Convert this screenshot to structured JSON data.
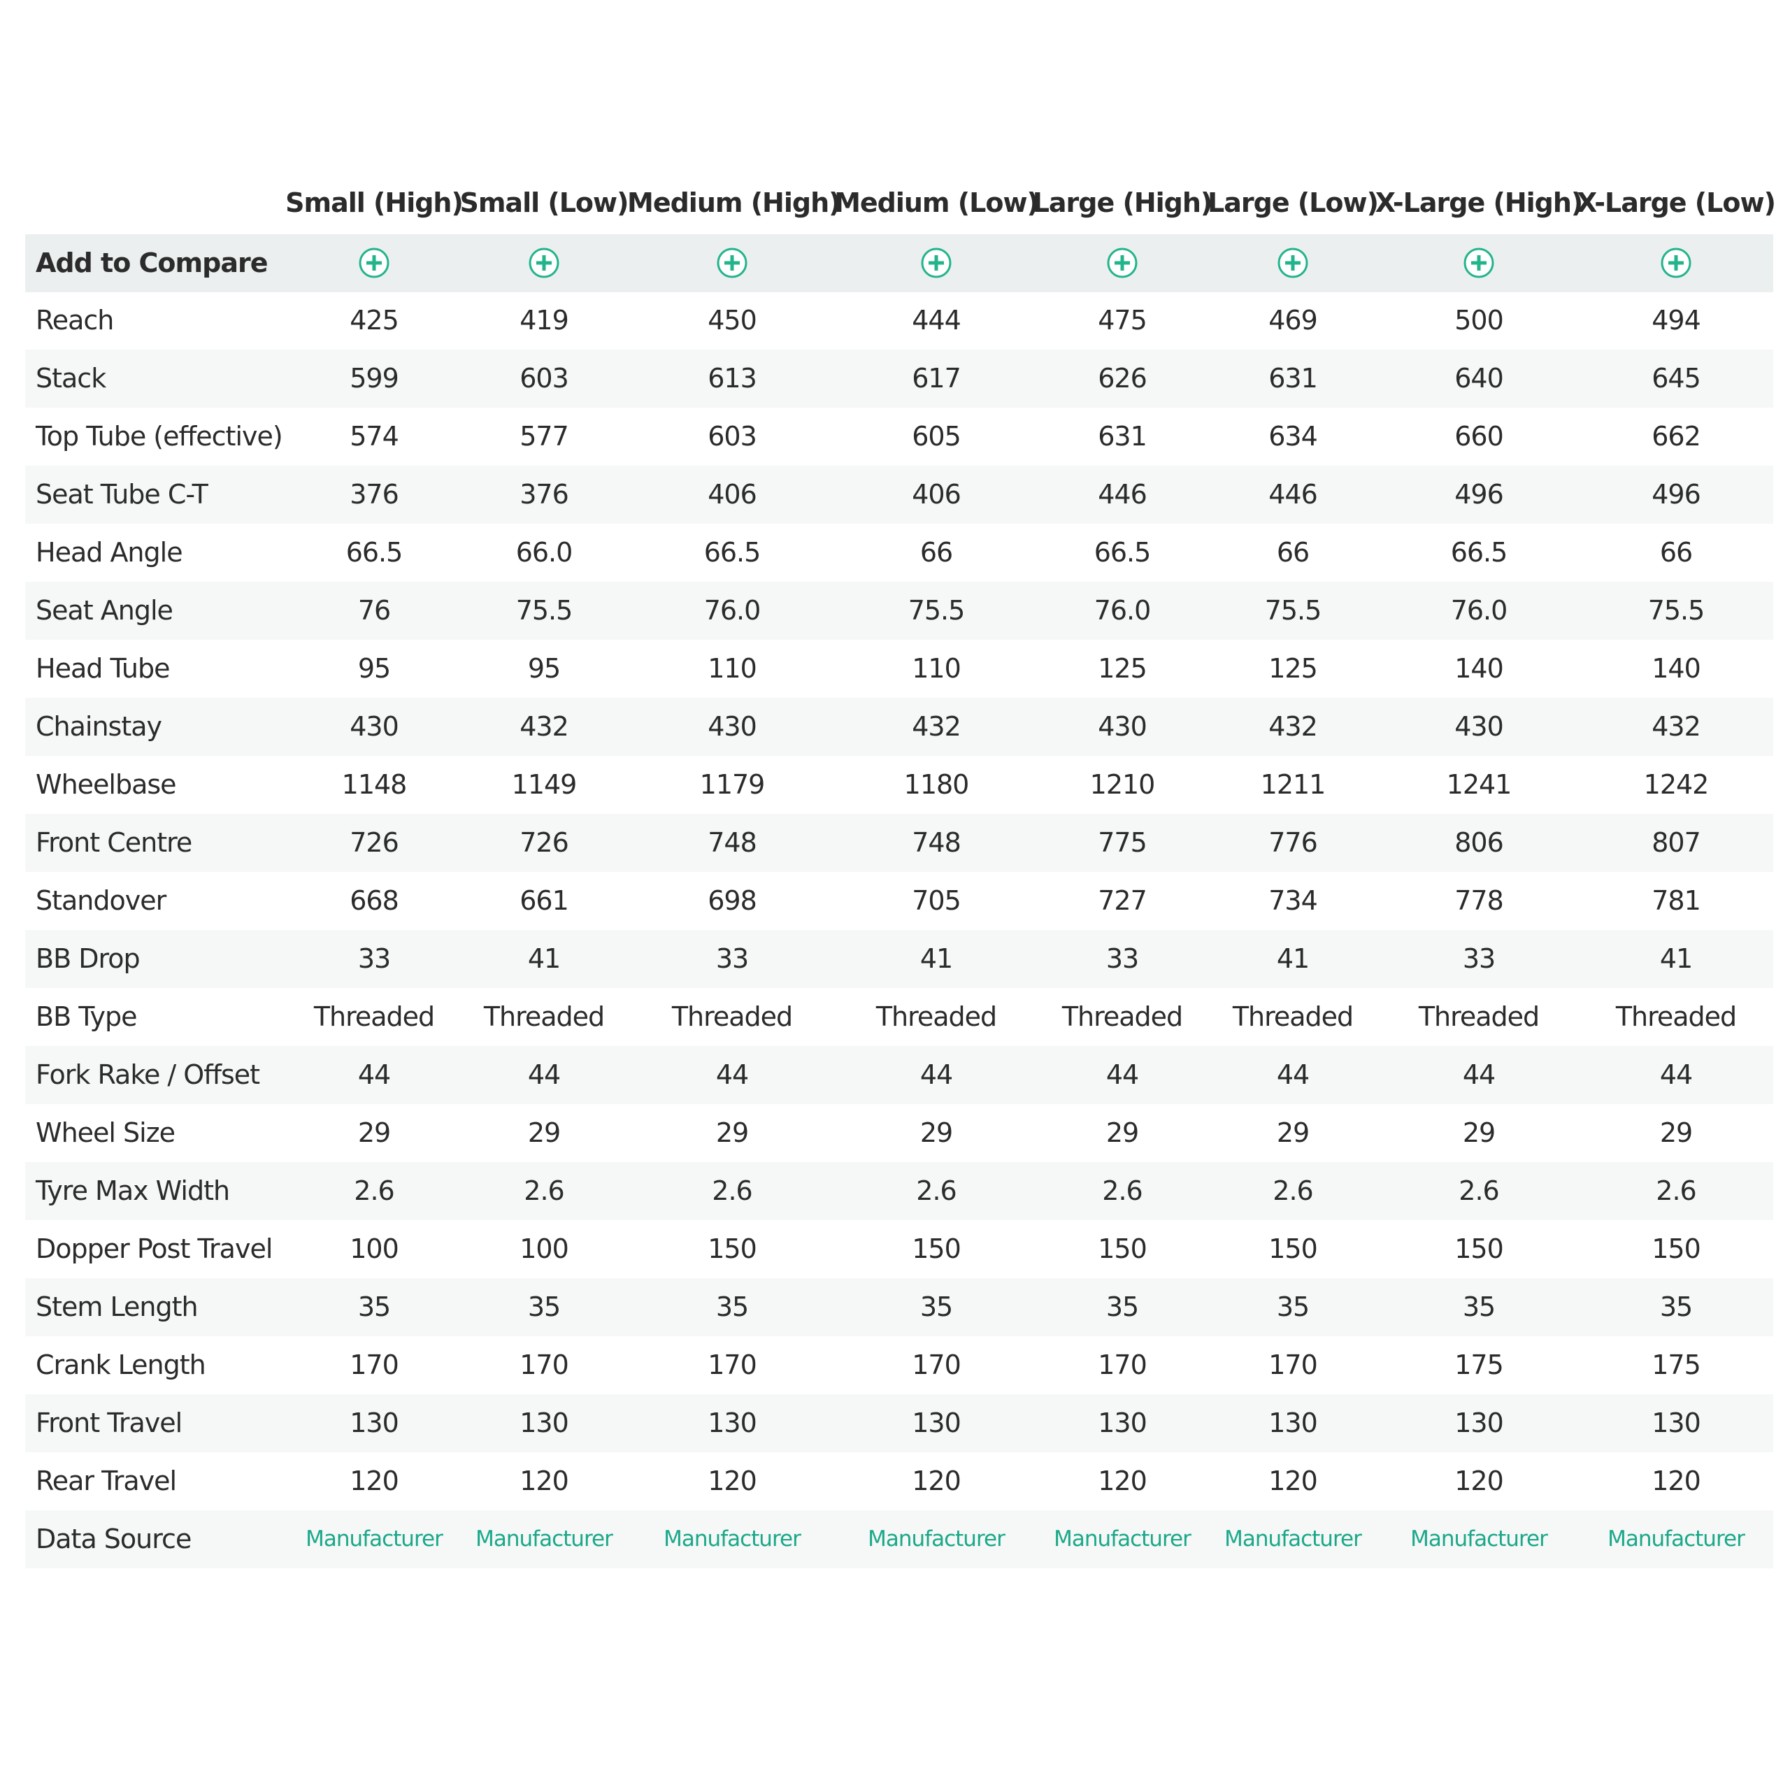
{
  "columns": [
    "Small (High)",
    "Small (Low)",
    "Medium (High)",
    "Medium (Low)",
    "Large (High)",
    "Large (Low)",
    "X-Large (High)",
    "X-Large (Low)"
  ],
  "add_to_compare": "Add to Compare",
  "rows": [
    {
      "label": "Reach",
      "values": [
        "425",
        "419",
        "450",
        "444",
        "475",
        "469",
        "500",
        "494"
      ]
    },
    {
      "label": "Stack",
      "values": [
        "599",
        "603",
        "613",
        "617",
        "626",
        "631",
        "640",
        "645"
      ]
    },
    {
      "label": "Top Tube (effective)",
      "values": [
        "574",
        "577",
        "603",
        "605",
        "631",
        "634",
        "660",
        "662"
      ]
    },
    {
      "label": "Seat Tube C-T",
      "values": [
        "376",
        "376",
        "406",
        "406",
        "446",
        "446",
        "496",
        "496"
      ]
    },
    {
      "label": "Head Angle",
      "values": [
        "66.5",
        "66.0",
        "66.5",
        "66",
        "66.5",
        "66",
        "66.5",
        "66"
      ]
    },
    {
      "label": "Seat Angle",
      "values": [
        "76",
        "75.5",
        "76.0",
        "75.5",
        "76.0",
        "75.5",
        "76.0",
        "75.5"
      ]
    },
    {
      "label": "Head Tube",
      "values": [
        "95",
        "95",
        "110",
        "110",
        "125",
        "125",
        "140",
        "140"
      ]
    },
    {
      "label": "Chainstay",
      "values": [
        "430",
        "432",
        "430",
        "432",
        "430",
        "432",
        "430",
        "432"
      ]
    },
    {
      "label": "Wheelbase",
      "values": [
        "1148",
        "1149",
        "1179",
        "1180",
        "1210",
        "1211",
        "1241",
        "1242"
      ]
    },
    {
      "label": "Front Centre",
      "values": [
        "726",
        "726",
        "748",
        "748",
        "775",
        "776",
        "806",
        "807"
      ]
    },
    {
      "label": "Standover",
      "values": [
        "668",
        "661",
        "698",
        "705",
        "727",
        "734",
        "778",
        "781"
      ]
    },
    {
      "label": "BB Drop",
      "values": [
        "33",
        "41",
        "33",
        "41",
        "33",
        "41",
        "33",
        "41"
      ]
    },
    {
      "label": "BB Type",
      "values": [
        "Threaded",
        "Threaded",
        "Threaded",
        "Threaded",
        "Threaded",
        "Threaded",
        "Threaded",
        "Threaded"
      ]
    },
    {
      "label": "Fork Rake / Offset",
      "values": [
        "44",
        "44",
        "44",
        "44",
        "44",
        "44",
        "44",
        "44"
      ]
    },
    {
      "label": "Wheel Size",
      "values": [
        "29",
        "29",
        "29",
        "29",
        "29",
        "29",
        "29",
        "29"
      ]
    },
    {
      "label": "Tyre Max Width",
      "values": [
        "2.6",
        "2.6",
        "2.6",
        "2.6",
        "2.6",
        "2.6",
        "2.6",
        "2.6"
      ]
    },
    {
      "label": "Dopper Post Travel",
      "values": [
        "100",
        "100",
        "150",
        "150",
        "150",
        "150",
        "150",
        "150"
      ]
    },
    {
      "label": "Stem Length",
      "values": [
        "35",
        "35",
        "35",
        "35",
        "35",
        "35",
        "35",
        "35"
      ]
    },
    {
      "label": "Crank Length",
      "values": [
        "170",
        "170",
        "170",
        "170",
        "170",
        "170",
        "175",
        "175"
      ]
    },
    {
      "label": "Front Travel",
      "values": [
        "130",
        "130",
        "130",
        "130",
        "130",
        "130",
        "130",
        "130"
      ]
    },
    {
      "label": "Rear Travel",
      "values": [
        "120",
        "120",
        "120",
        "120",
        "120",
        "120",
        "120",
        "120"
      ]
    },
    {
      "label": "Data Source",
      "values": [
        "Manufacturer",
        "Manufacturer",
        "Manufacturer",
        "Manufacturer",
        "Manufacturer",
        "Manufacturer",
        "Manufacturer",
        "Manufacturer"
      ]
    }
  ]
}
